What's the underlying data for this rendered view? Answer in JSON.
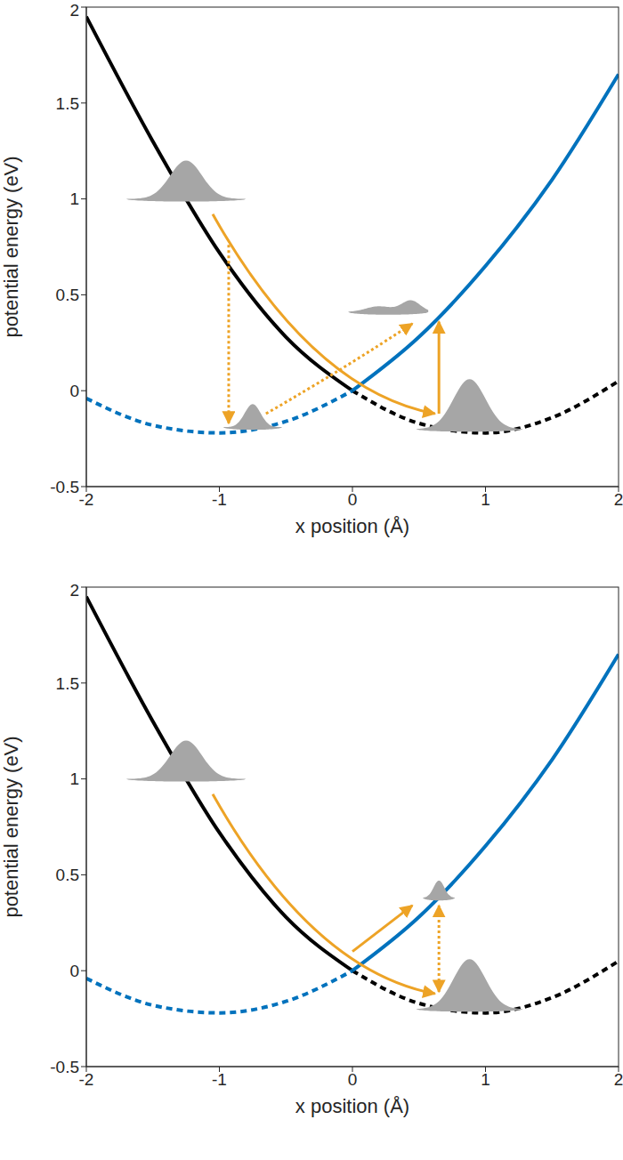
{
  "chart_data": [
    {
      "type": "line",
      "xlabel": "x position (Å)",
      "ylabel": "potential energy (eV)",
      "x": [
        -2,
        -1.5,
        -1,
        -0.5,
        0,
        0.5,
        1,
        1.5,
        2
      ],
      "xlim": [
        -2,
        2
      ],
      "ylim": [
        -0.5,
        2
      ],
      "xticks": [
        -2,
        -1,
        0,
        1,
        2
      ],
      "yticks": [
        -0.5,
        0,
        0.5,
        1,
        1.5,
        2
      ],
      "series": [
        {
          "color": "#000000",
          "line_style": "solid",
          "values": [
            1.95,
            1.3,
            0.72,
            0.28,
            0,
            null,
            null,
            null,
            null
          ]
        },
        {
          "color": "#000000",
          "line_style": "dashed",
          "values": [
            null,
            null,
            null,
            null,
            0,
            -0.17,
            -0.22,
            -0.14,
            0.05
          ]
        },
        {
          "color": "#0072bd",
          "line_style": "dashed",
          "values": [
            -0.04,
            -0.18,
            -0.22,
            -0.16,
            0,
            null,
            null,
            null,
            null
          ]
        },
        {
          "color": "#0072bd",
          "line_style": "solid",
          "values": [
            null,
            null,
            null,
            null,
            0,
            0.28,
            0.65,
            1.1,
            1.65
          ]
        }
      ]
    },
    {
      "type": "line",
      "xlabel": "x position (Å)",
      "ylabel": "potential energy (eV)",
      "x": [
        -2,
        -1.5,
        -1,
        -0.5,
        0,
        0.5,
        1,
        1.5,
        2
      ],
      "xlim": [
        -2,
        2
      ],
      "ylim": [
        -0.5,
        2
      ],
      "xticks": [
        -2,
        -1,
        0,
        1,
        2
      ],
      "yticks": [
        -0.5,
        0,
        0.5,
        1,
        1.5,
        2
      ],
      "series": [
        {
          "color": "#000000",
          "line_style": "solid",
          "values": [
            1.95,
            1.3,
            0.72,
            0.28,
            0,
            null,
            null,
            null,
            null
          ]
        },
        {
          "color": "#000000",
          "line_style": "dashed",
          "values": [
            null,
            null,
            null,
            null,
            0,
            -0.17,
            -0.22,
            -0.14,
            0.05
          ]
        },
        {
          "color": "#0072bd",
          "line_style": "dashed",
          "values": [
            -0.04,
            -0.18,
            -0.22,
            -0.16,
            0,
            null,
            null,
            null,
            null
          ]
        },
        {
          "color": "#0072bd",
          "line_style": "solid",
          "values": [
            null,
            null,
            null,
            null,
            0,
            0.28,
            0.65,
            1.1,
            1.65
          ]
        }
      ]
    }
  ]
}
